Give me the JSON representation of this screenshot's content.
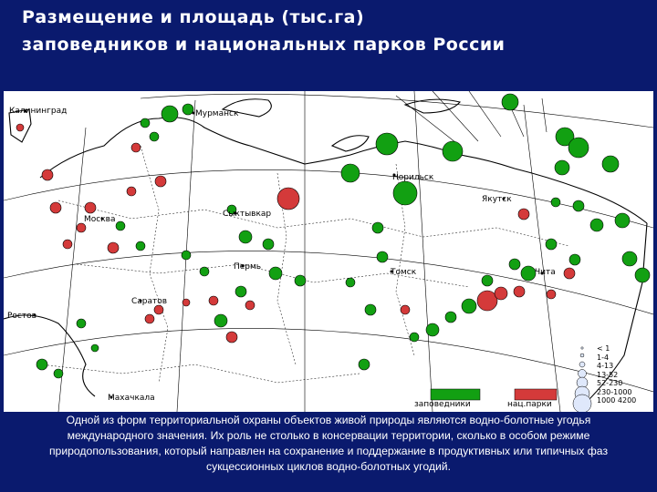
{
  "title": {
    "line1": "Размещение и площадь (тыс.га)",
    "line2": "заповедников и национальных парков России"
  },
  "cities": {
    "kaliningrad": "Калининград",
    "murmansk": "Мурманск",
    "norilsk": "Норильск",
    "yakutsk": "Якутск",
    "moscow": "Москва",
    "syktyvkar": "Сыктывкар",
    "perm": "Пермь",
    "tomsk": "Томск",
    "chita": "Чита",
    "saratov": "Саратов",
    "rostov": "Ростов",
    "makhachkala": "Махачкала"
  },
  "legend": {
    "reserves": "заповедники",
    "parks": "нац.парки",
    "size_classes": [
      "< 1",
      "1-4",
      "4-13",
      "13-52",
      "52-230",
      "230-1000",
      "1000 4200"
    ],
    "colors": {
      "reserve": "#12a012",
      "park": "#d43a3a"
    }
  },
  "caption": "Одной из форм территориальной охраны объектов живой природы являются водно-болотные угодья международного значения. Их роль не столько в консервации территории, сколько в особом режиме природопользования, который направлен на сохранение и поддержание в продуктивных или типичных фаз сукцессионных циклов водно-болотных угодий."
}
